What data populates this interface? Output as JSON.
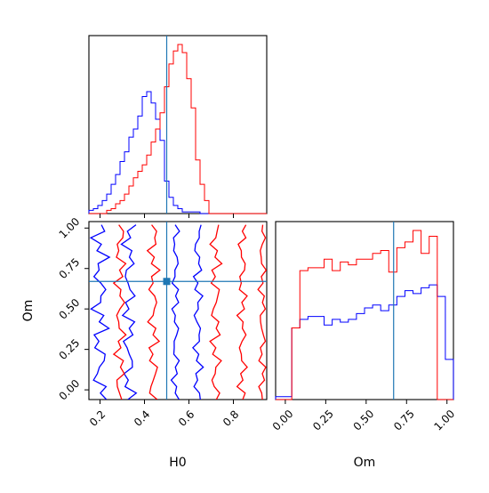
{
  "chart_data": {
    "type": "corner",
    "parameters": [
      "H0",
      "Om"
    ],
    "truth": {
      "H0": 0.5,
      "Om": 0.67
    },
    "colors": {
      "series_a": "#0000ff",
      "series_b": "#ff0000",
      "truth": "#1f77b4"
    },
    "xlabel_h0": "H0",
    "xlabel_om": "Om",
    "ylabel_om": "Om",
    "h0_axis": {
      "range": [
        0.15,
        0.95
      ],
      "ticks": [
        0.2,
        0.4,
        0.6,
        0.8
      ],
      "tick_labels": [
        "0.2",
        "0.4",
        "0.6",
        "0.8"
      ]
    },
    "om_axis": {
      "range": [
        -0.06,
        1.04
      ],
      "ticks": [
        0.0,
        0.25,
        0.5,
        0.75,
        1.0
      ],
      "tick_labels": [
        "0.00",
        "0.25",
        "0.50",
        "0.75",
        "1.00"
      ]
    },
    "hist_h0": {
      "bin_start": 0.15,
      "bin_width": 0.02,
      "series": [
        {
          "color": "blue",
          "values": [
            0.2,
            0.3,
            0.5,
            0.8,
            1.2,
            1.8,
            2.4,
            3.2,
            3.8,
            4.7,
            5.2,
            6.0,
            7.2,
            7.5,
            6.8,
            5.8,
            4.5,
            2.0,
            1.0,
            0.5,
            0.3,
            0.1,
            0.1,
            0.1,
            0.1,
            0,
            0,
            0,
            0,
            0,
            0,
            0,
            0,
            0,
            0,
            0,
            0,
            0,
            0,
            0
          ]
        },
        {
          "color": "red",
          "values": [
            0,
            0,
            0,
            0,
            0.2,
            0.3,
            0.6,
            0.8,
            1.2,
            1.7,
            2.2,
            2.6,
            3.0,
            3.6,
            4.4,
            5.2,
            6.2,
            7.8,
            9.2,
            10.0,
            10.4,
            9.9,
            8.3,
            6.5,
            3.3,
            1.8,
            0.8,
            0,
            0,
            0,
            0,
            0,
            0,
            0,
            0,
            0,
            0,
            0,
            0,
            0
          ]
        }
      ]
    },
    "hist_om": {
      "bin_start": -0.06,
      "bin_width": 0.05,
      "series": [
        {
          "color": "blue",
          "values": [
            0.2,
            0.2,
            5.0,
            5.6,
            5.8,
            5.8,
            5.2,
            5.6,
            5.4,
            5.6,
            6.0,
            6.4,
            6.6,
            6.2,
            6.6,
            7.2,
            7.6,
            7.4,
            7.8,
            8.0,
            7.2,
            2.8
          ]
        },
        {
          "color": "red",
          "values": [
            0,
            0,
            5.0,
            9.0,
            9.2,
            9.2,
            9.8,
            9.0,
            9.6,
            9.4,
            9.8,
            9.8,
            10.2,
            10.4,
            8.9,
            10.6,
            11.0,
            11.8,
            10.2,
            11.4,
            0,
            0
          ]
        }
      ]
    }
  }
}
